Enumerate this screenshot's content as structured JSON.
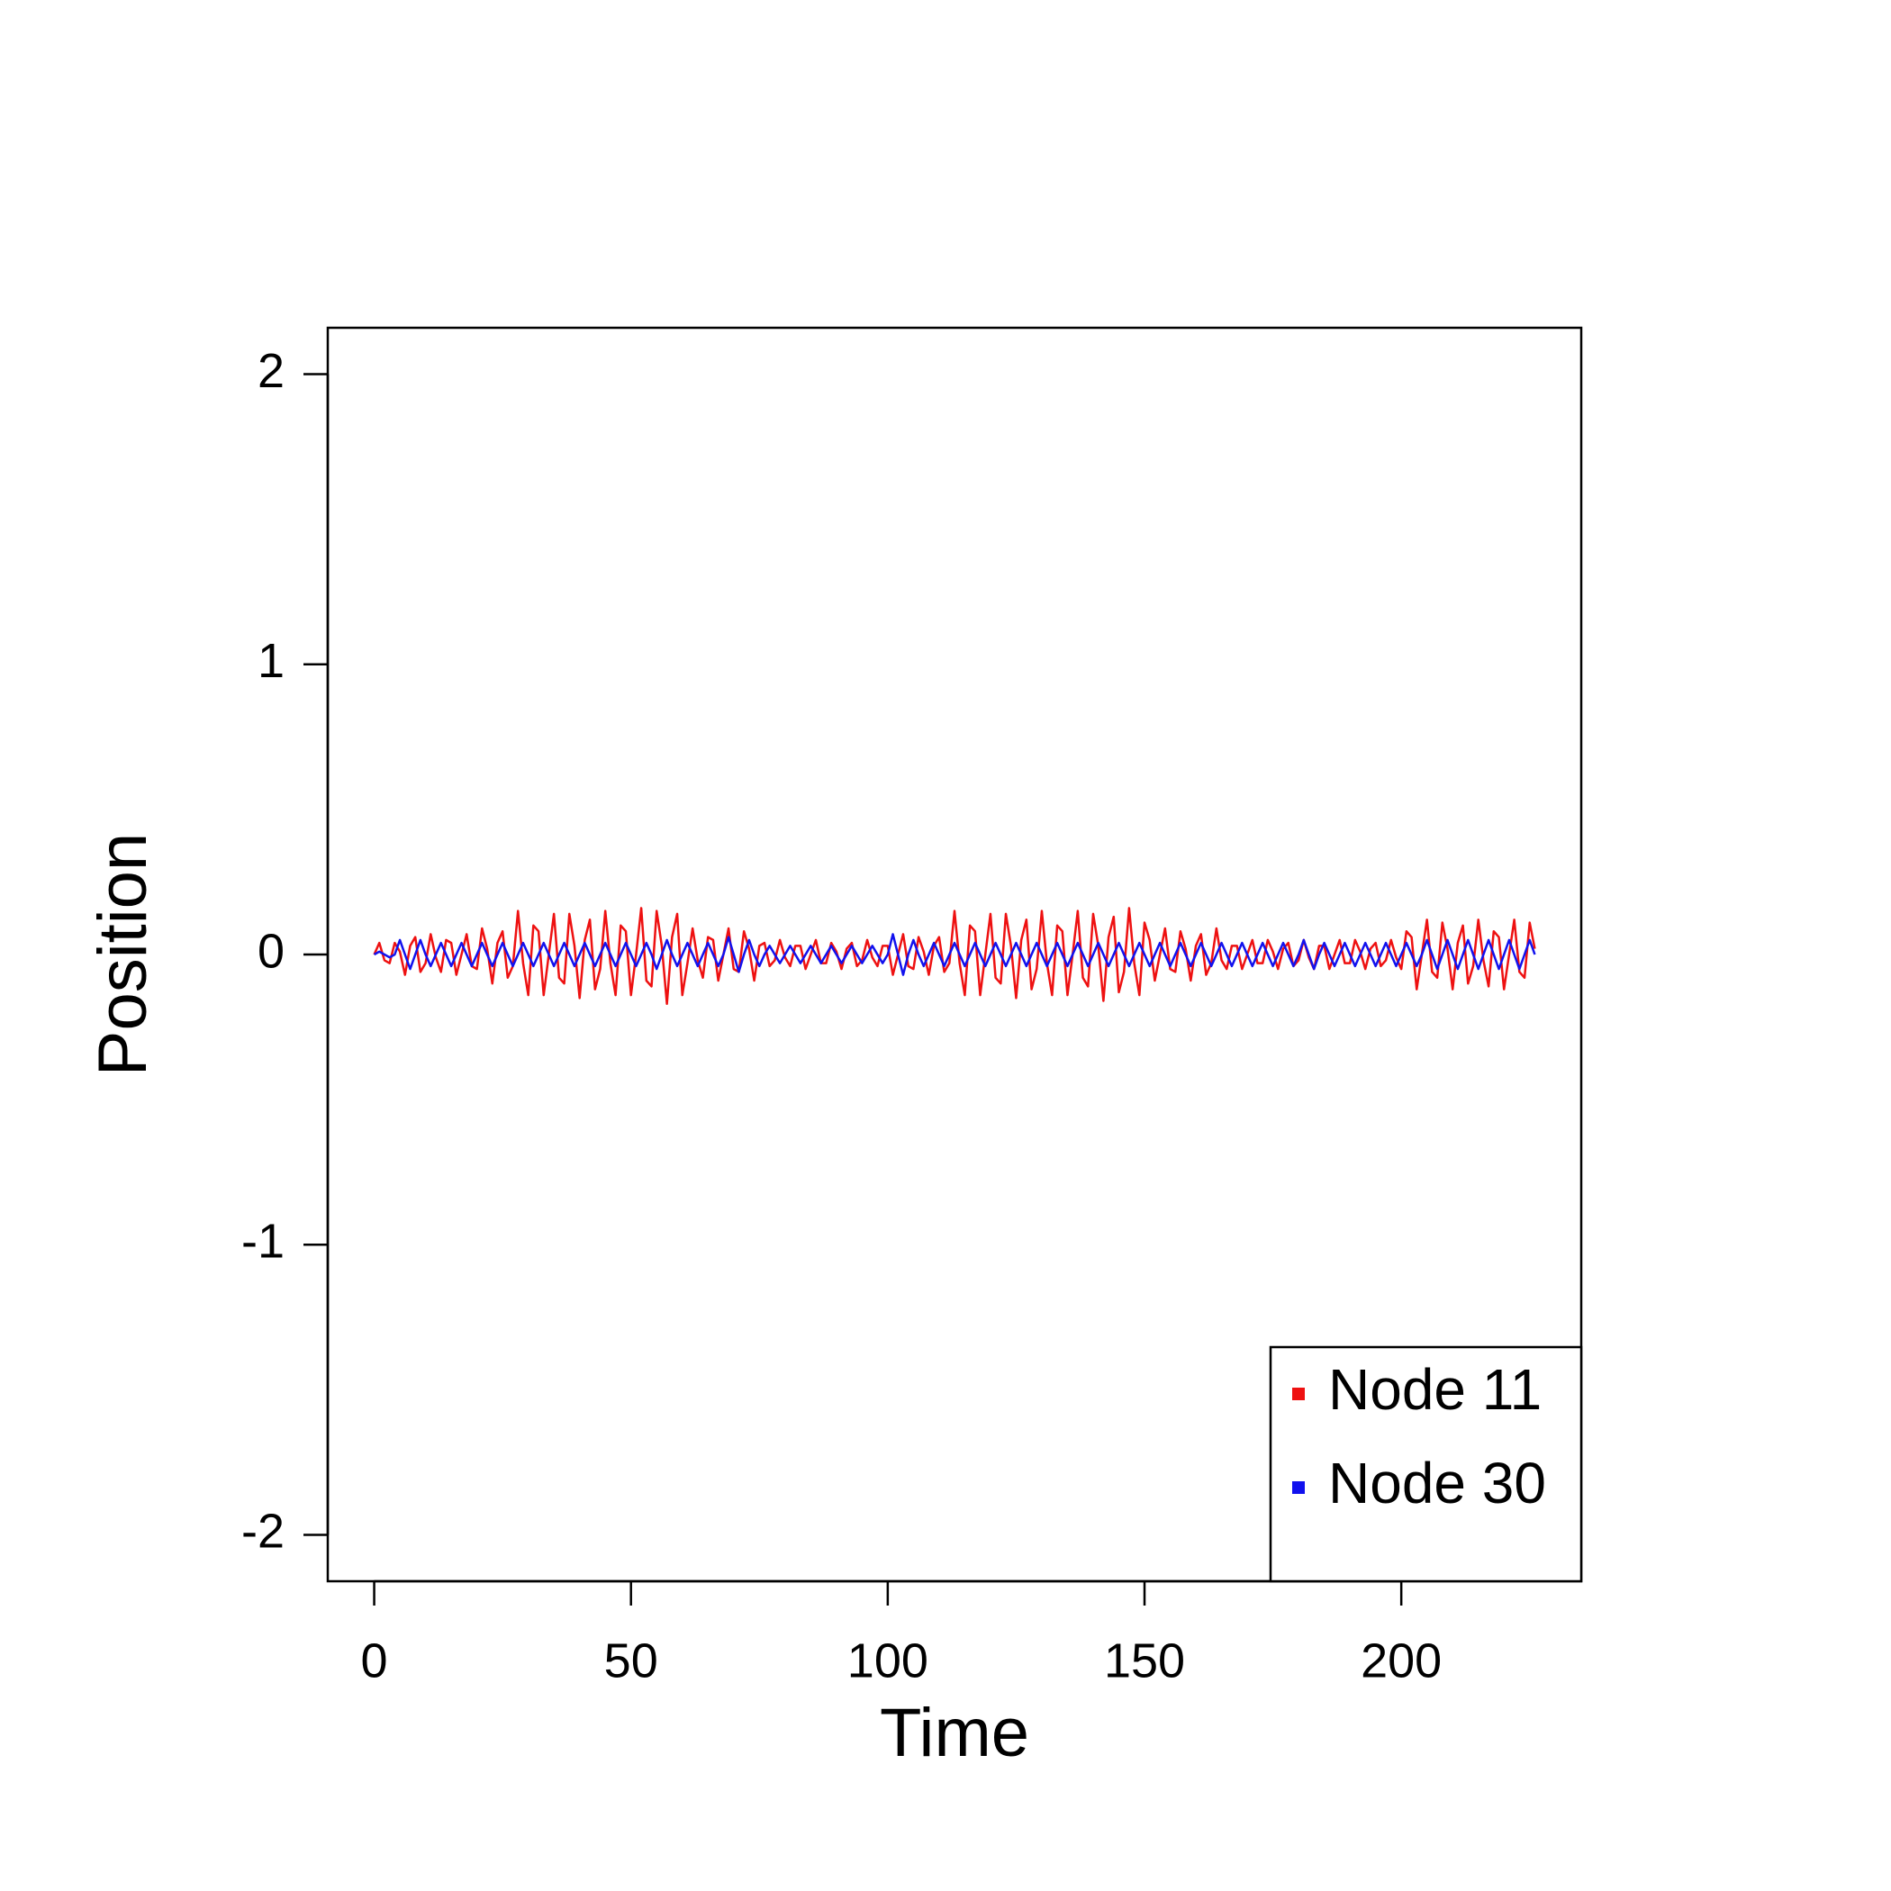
{
  "chart_data": {
    "type": "line",
    "xlabel": "Time",
    "ylabel": "Position",
    "x": [
      0,
      1,
      2,
      3,
      4,
      5,
      6,
      7,
      8,
      9,
      10,
      11,
      12,
      13,
      14,
      15,
      16,
      17,
      18,
      19,
      20,
      21,
      22,
      23,
      24,
      25,
      26,
      27,
      28,
      29,
      30,
      31,
      32,
      33,
      34,
      35,
      36,
      37,
      38,
      39,
      40,
      41,
      42,
      43,
      44,
      45,
      46,
      47,
      48,
      49,
      50,
      51,
      52,
      53,
      54,
      55,
      56,
      57,
      58,
      59,
      60,
      61,
      62,
      63,
      64,
      65,
      66,
      67,
      68,
      69,
      70,
      71,
      72,
      73,
      74,
      75,
      76,
      77,
      78,
      79,
      80,
      81,
      82,
      83,
      84,
      85,
      86,
      87,
      88,
      89,
      90,
      91,
      92,
      93,
      94,
      95,
      96,
      97,
      98,
      99,
      100,
      101,
      102,
      103,
      104,
      105,
      106,
      107,
      108,
      109,
      110,
      111,
      112,
      113,
      114,
      115,
      116,
      117,
      118,
      119,
      120,
      121,
      122,
      123,
      124,
      125,
      126,
      127,
      128,
      129,
      130,
      131,
      132,
      133,
      134,
      135,
      136,
      137,
      138,
      139,
      140,
      141,
      142,
      143,
      144,
      145,
      146,
      147,
      148,
      149,
      150,
      151,
      152,
      153,
      154,
      155,
      156,
      157,
      158,
      159,
      160,
      161,
      162,
      163,
      164,
      165,
      166,
      167,
      168,
      169,
      170,
      171,
      172,
      173,
      174,
      175,
      176,
      177,
      178,
      179,
      180,
      181,
      182,
      183,
      184,
      185,
      186,
      187,
      188,
      189,
      190,
      191,
      192,
      193,
      194,
      195,
      196,
      197,
      198,
      199,
      200,
      201,
      202,
      203,
      204,
      205,
      206,
      207,
      208,
      209,
      210,
      211,
      212,
      213,
      214,
      215,
      216,
      217,
      218,
      219,
      220,
      221,
      222,
      223,
      224,
      225,
      226
    ],
    "series": [
      {
        "name": "Node 11",
        "color": "#ee1111",
        "values": [
          0,
          0.04,
          -0.02,
          -0.03,
          0.04,
          0.01,
          -0.07,
          0.03,
          0.06,
          -0.06,
          -0.03,
          0.07,
          -0.01,
          -0.06,
          0.05,
          0.04,
          -0.07,
          0,
          0.07,
          -0.04,
          -0.05,
          0.09,
          0.02,
          -0.1,
          0.04,
          0.08,
          -0.08,
          -0.04,
          0.15,
          -0.03,
          -0.14,
          0.1,
          0.08,
          -0.14,
          0,
          0.14,
          -0.08,
          -0.1,
          0.14,
          0.03,
          -0.15,
          0.05,
          0.12,
          -0.12,
          -0.05,
          0.15,
          -0.03,
          -0.14,
          0.1,
          0.08,
          -0.14,
          0,
          0.16,
          -0.09,
          -0.11,
          0.15,
          0.03,
          -0.17,
          0.06,
          0.14,
          -0.14,
          -0.03,
          0.09,
          -0.02,
          -0.08,
          0.06,
          0.05,
          -0.09,
          0,
          0.09,
          -0.05,
          -0.06,
          0.08,
          0.02,
          -0.09,
          0.03,
          0.04,
          -0.04,
          -0.02,
          0.05,
          -0.01,
          -0.04,
          0.03,
          0.03,
          -0.05,
          0,
          0.05,
          -0.03,
          -0.03,
          0.04,
          0.01,
          -0.05,
          0.02,
          0.04,
          -0.04,
          -0.02,
          0.05,
          -0.01,
          -0.04,
          0.03,
          0.03,
          -0.07,
          0,
          0.07,
          -0.04,
          -0.05,
          0.06,
          0.01,
          -0.07,
          0.03,
          0.06,
          -0.06,
          -0.03,
          0.15,
          -0.03,
          -0.14,
          0.1,
          0.08,
          -0.14,
          0,
          0.14,
          -0.08,
          -0.1,
          0.14,
          0.03,
          -0.15,
          0.05,
          0.12,
          -0.12,
          -0.05,
          0.15,
          -0.03,
          -0.14,
          0.1,
          0.08,
          -0.14,
          0,
          0.15,
          -0.08,
          -0.11,
          0.14,
          0.03,
          -0.16,
          0.06,
          0.13,
          -0.13,
          -0.06,
          0.16,
          -0.03,
          -0.14,
          0.11,
          0.05,
          -0.09,
          0,
          0.09,
          -0.05,
          -0.06,
          0.08,
          0.02,
          -0.09,
          0.03,
          0.07,
          -0.07,
          -0.03,
          0.09,
          -0.02,
          -0.05,
          0.03,
          0.03,
          -0.05,
          0,
          0.05,
          -0.03,
          -0.03,
          0.05,
          0.01,
          -0.05,
          0.02,
          0.04,
          -0.04,
          -0.02,
          0.05,
          -0.01,
          -0.05,
          0.03,
          0.03,
          -0.05,
          0,
          0.05,
          -0.03,
          -0.03,
          0.05,
          0.01,
          -0.05,
          0.02,
          0.04,
          -0.04,
          -0.02,
          0.05,
          -0.01,
          -0.05,
          0.08,
          0.06,
          -0.12,
          0,
          0.12,
          -0.06,
          -0.08,
          0.11,
          0.02,
          -0.12,
          0.04,
          0.1,
          -0.1,
          -0.04,
          0.12,
          -0.02,
          -0.11,
          0.08,
          0.06,
          -0.12,
          0,
          0.12,
          -0.06,
          -0.08,
          0.11,
          0.02
        ]
      },
      {
        "name": "Node 30",
        "color": "#1111ee",
        "values": [
          0,
          0.01,
          0,
          -0.01,
          0,
          0.05,
          0,
          -0.05,
          0,
          0.05,
          0,
          -0.04,
          0,
          0.04,
          0,
          -0.04,
          0,
          0.04,
          0,
          -0.04,
          0,
          0.04,
          0,
          -0.04,
          0,
          0.04,
          0,
          -0.04,
          0,
          0.04,
          0,
          -0.04,
          0,
          0.04,
          0,
          -0.04,
          0,
          0.04,
          0,
          -0.04,
          0,
          0.04,
          0,
          -0.04,
          0,
          0.04,
          0,
          -0.04,
          0,
          0.04,
          0,
          -0.04,
          0,
          0.04,
          0,
          -0.05,
          0,
          0.05,
          0,
          -0.04,
          0,
          0.04,
          0,
          -0.04,
          0,
          0.04,
          0,
          -0.04,
          0,
          0.06,
          0,
          -0.06,
          0,
          0.05,
          0,
          -0.04,
          0,
          0.03,
          0,
          -0.03,
          0,
          0.03,
          0,
          -0.03,
          0,
          0.03,
          0,
          -0.03,
          0,
          0.03,
          0,
          -0.03,
          0,
          0.03,
          0,
          -0.03,
          0,
          0.03,
          0,
          -0.03,
          0,
          0.07,
          0,
          -0.07,
          0,
          0.05,
          0,
          -0.04,
          0,
          0.04,
          0,
          -0.04,
          0,
          0.04,
          0,
          -0.04,
          0,
          0.04,
          0,
          -0.04,
          0,
          0.04,
          0,
          -0.04,
          0,
          0.04,
          0,
          -0.04,
          0,
          0.04,
          0,
          -0.04,
          0,
          0.04,
          0,
          -0.04,
          0,
          0.04,
          0,
          -0.04,
          0,
          0.04,
          0,
          -0.04,
          0,
          0.04,
          0,
          -0.04,
          0,
          0.04,
          0,
          -0.04,
          0,
          0.04,
          0,
          -0.04,
          0,
          0.04,
          0,
          -0.04,
          0,
          0.04,
          0,
          -0.04,
          0,
          0.04,
          0,
          -0.04,
          0,
          0.04,
          0,
          -0.04,
          0,
          0.04,
          0,
          -0.04,
          0,
          0.04,
          0,
          -0.04,
          0,
          0.05,
          0,
          -0.05,
          0,
          0.04,
          0,
          -0.04,
          0,
          0.04,
          0,
          -0.04,
          0,
          0.04,
          0,
          -0.04,
          0,
          0.04,
          0,
          -0.04,
          0,
          0.04,
          0,
          -0.04,
          0,
          0.05,
          0,
          -0.05,
          0,
          0.05,
          0,
          -0.05,
          0,
          0.05,
          0,
          -0.05,
          0,
          0.05,
          0,
          -0.05,
          0,
          0.05,
          0,
          -0.05,
          0,
          0.05,
          0
        ]
      }
    ],
    "xlim": [
      -9.04,
      235.04
    ],
    "ylim": [
      -2.16,
      2.16
    ],
    "xticks": [
      0,
      50,
      100,
      150,
      200
    ],
    "yticks": [
      -2,
      -1,
      0,
      1,
      2
    ],
    "legend": "bottomright"
  }
}
